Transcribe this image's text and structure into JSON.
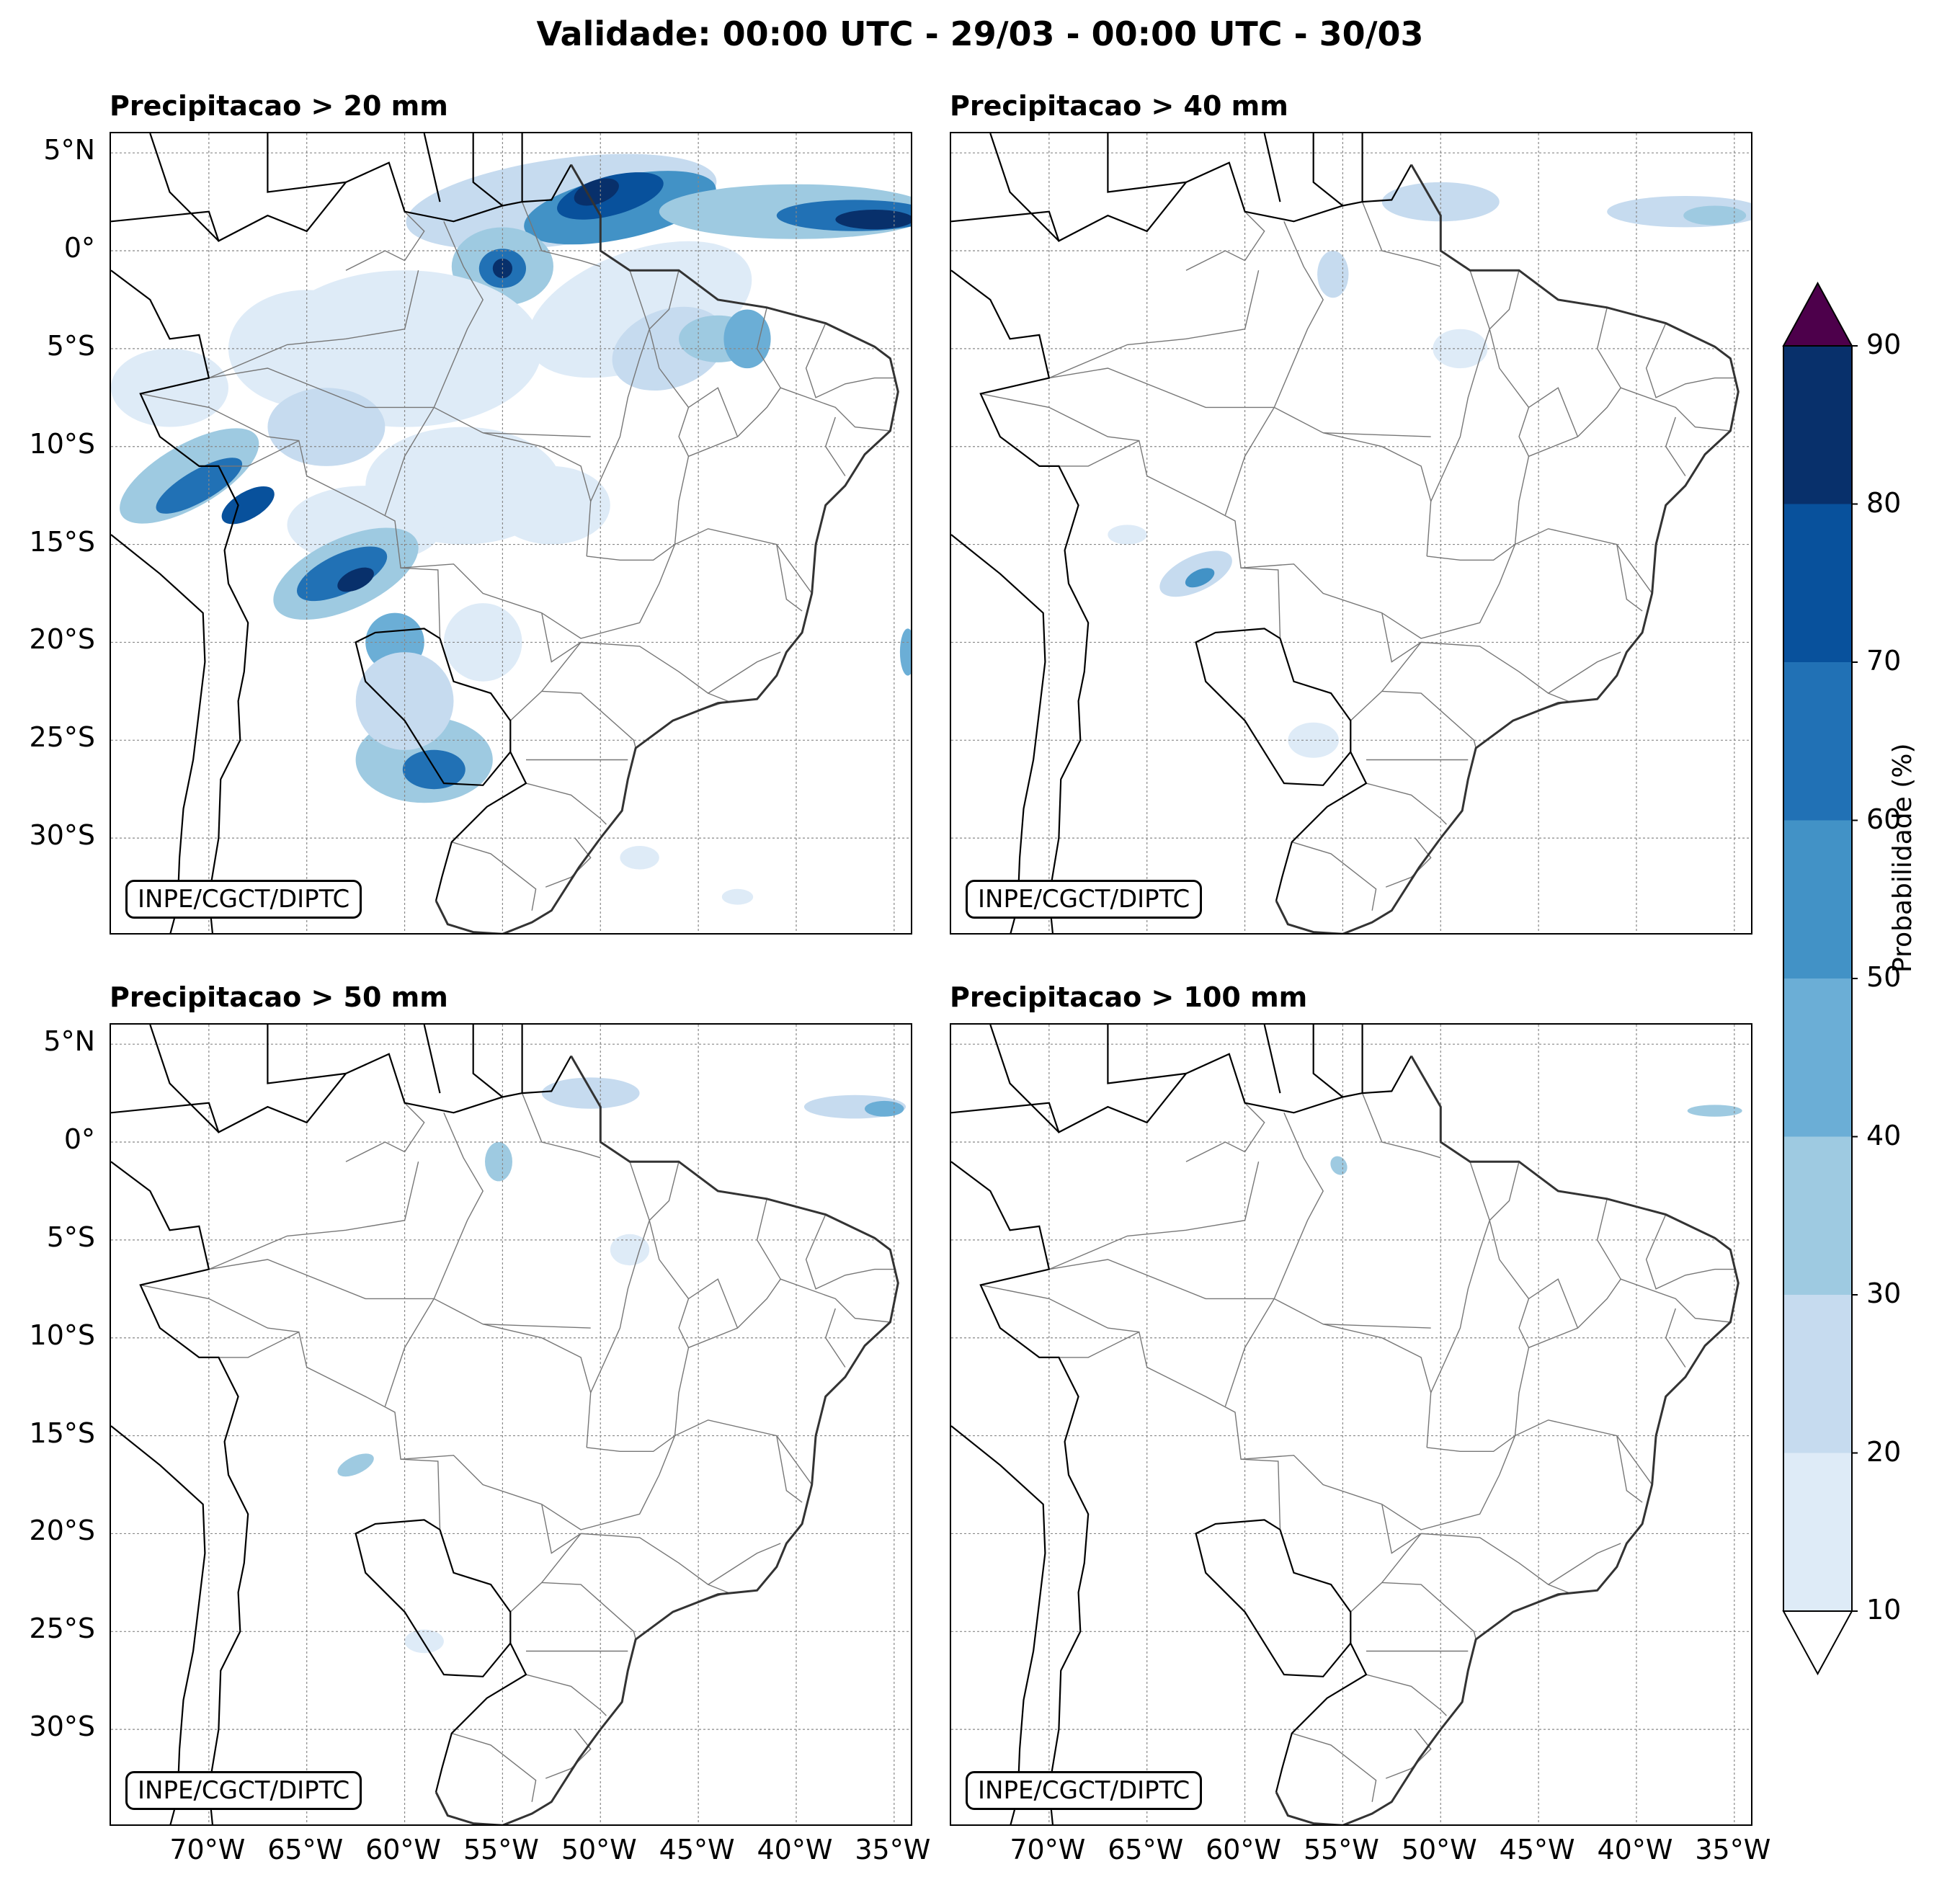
{
  "title": "Validade: 00:00 UTC - 29/03 - 00:00 UTC - 30/03",
  "panels": [
    {
      "title": "Precipitacao > 20 mm",
      "credit": "INPE/CGCT/DIPTC"
    },
    {
      "title": "Precipitacao > 40 mm",
      "credit": "INPE/CGCT/DIPTC"
    },
    {
      "title": "Precipitacao > 50 mm",
      "credit": "INPE/CGCT/DIPTC"
    },
    {
      "title": "Precipitacao > 100 mm",
      "credit": "INPE/CGCT/DIPTC"
    }
  ],
  "lat_ticks": [
    "5°N",
    "0°",
    "5°S",
    "10°S",
    "15°S",
    "20°S",
    "25°S",
    "30°S"
  ],
  "lon_ticks": [
    "70°W",
    "65°W",
    "60°W",
    "55°W",
    "50°W",
    "45°W",
    "40°W",
    "35°W"
  ],
  "colorbar": {
    "label": "Probabilidade (%)",
    "ticks": [
      "10",
      "20",
      "30",
      "40",
      "50",
      "60",
      "70",
      "80",
      "90"
    ],
    "colors": [
      "#deebf7",
      "#c6dbef",
      "#9ecae1",
      "#6baed6",
      "#4292c6",
      "#2171b5",
      "#08519c",
      "#08306b"
    ],
    "over_color": "#4d004b",
    "under_color": "#ffffff"
  }
}
